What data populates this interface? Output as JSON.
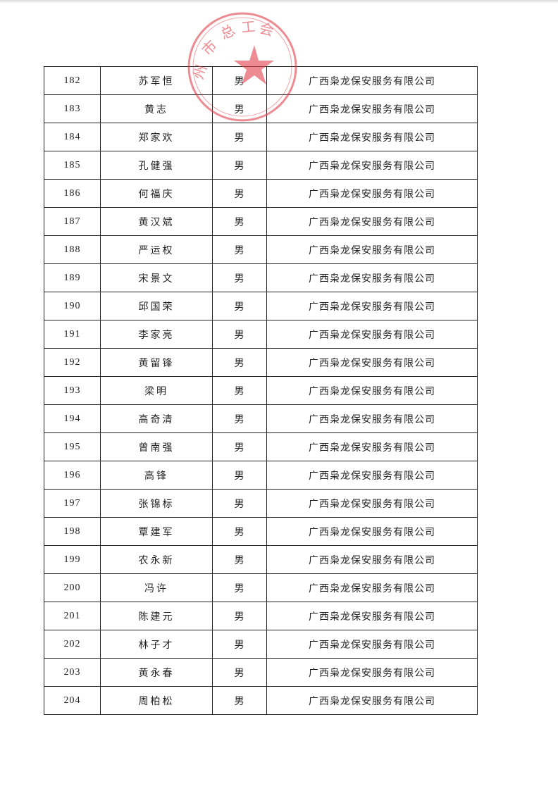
{
  "stamp": {
    "text": "州市总工会",
    "color": "#e0404a"
  },
  "rows": [
    {
      "no": "182",
      "name": "苏军恒",
      "sex": "男",
      "company": "广西枭龙保安服务有限公司"
    },
    {
      "no": "183",
      "name": "黄志",
      "sex": "男",
      "company": "广西枭龙保安服务有限公司"
    },
    {
      "no": "184",
      "name": "郑家欢",
      "sex": "男",
      "company": "广西枭龙保安服务有限公司"
    },
    {
      "no": "185",
      "name": "孔健强",
      "sex": "男",
      "company": "广西枭龙保安服务有限公司"
    },
    {
      "no": "186",
      "name": "何福庆",
      "sex": "男",
      "company": "广西枭龙保安服务有限公司"
    },
    {
      "no": "187",
      "name": "黄汉斌",
      "sex": "男",
      "company": "广西枭龙保安服务有限公司"
    },
    {
      "no": "188",
      "name": "严运权",
      "sex": "男",
      "company": "广西枭龙保安服务有限公司"
    },
    {
      "no": "189",
      "name": "宋景文",
      "sex": "男",
      "company": "广西枭龙保安服务有限公司"
    },
    {
      "no": "190",
      "name": "邱国荣",
      "sex": "男",
      "company": "广西枭龙保安服务有限公司"
    },
    {
      "no": "191",
      "name": "李家亮",
      "sex": "男",
      "company": "广西枭龙保安服务有限公司"
    },
    {
      "no": "192",
      "name": "黄留锋",
      "sex": "男",
      "company": "广西枭龙保安服务有限公司"
    },
    {
      "no": "193",
      "name": "梁明",
      "sex": "男",
      "company": "广西枭龙保安服务有限公司"
    },
    {
      "no": "194",
      "name": "高奇清",
      "sex": "男",
      "company": "广西枭龙保安服务有限公司"
    },
    {
      "no": "195",
      "name": "曾南强",
      "sex": "男",
      "company": "广西枭龙保安服务有限公司"
    },
    {
      "no": "196",
      "name": "高锋",
      "sex": "男",
      "company": "广西枭龙保安服务有限公司"
    },
    {
      "no": "197",
      "name": "张锦标",
      "sex": "男",
      "company": "广西枭龙保安服务有限公司"
    },
    {
      "no": "198",
      "name": "覃建军",
      "sex": "男",
      "company": "广西枭龙保安服务有限公司"
    },
    {
      "no": "199",
      "name": "农永新",
      "sex": "男",
      "company": "广西枭龙保安服务有限公司"
    },
    {
      "no": "200",
      "name": "冯许",
      "sex": "男",
      "company": "广西枭龙保安服务有限公司"
    },
    {
      "no": "201",
      "name": "陈建元",
      "sex": "男",
      "company": "广西枭龙保安服务有限公司"
    },
    {
      "no": "202",
      "name": "林子才",
      "sex": "男",
      "company": "广西枭龙保安服务有限公司"
    },
    {
      "no": "203",
      "name": "黄永春",
      "sex": "男",
      "company": "广西枭龙保安服务有限公司"
    },
    {
      "no": "204",
      "name": "周柏松",
      "sex": "男",
      "company": "广西枭龙保安服务有限公司"
    }
  ]
}
